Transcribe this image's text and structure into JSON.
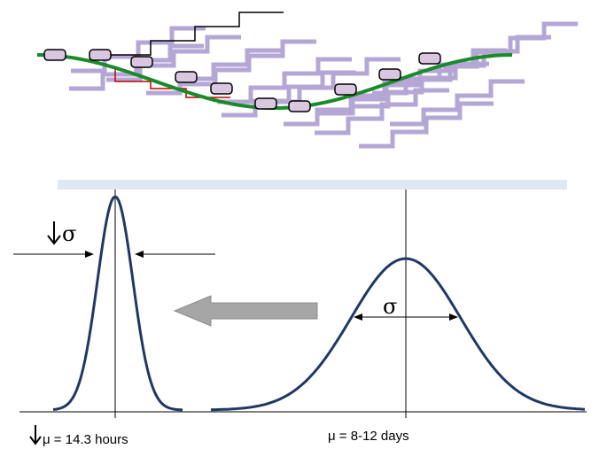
{
  "labels": {
    "left_sigma": "σ",
    "right_sigma": "σ",
    "left_mean": "μ = 14.3 hours",
    "right_mean": "μ = 8-12 days"
  }
}
